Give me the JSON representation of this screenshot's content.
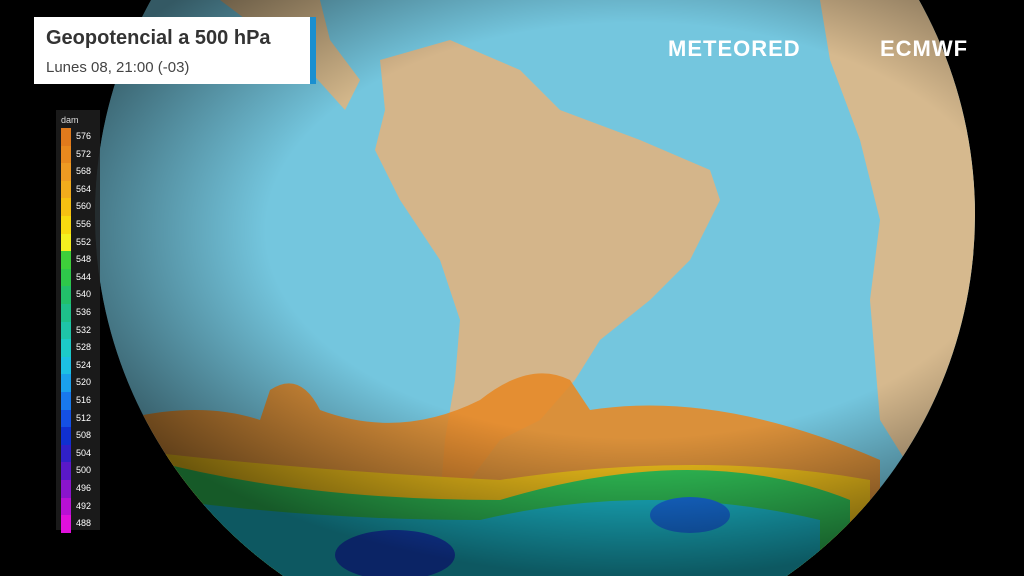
{
  "header": {
    "title": "Geopotencial a 500 hPa",
    "subtitle": "Lunes 08, 21:00 (-03)"
  },
  "brand": {
    "left": "METEORED",
    "right": "ECMWF"
  },
  "legend": {
    "unit": "dam",
    "items": [
      {
        "label": 576,
        "color": "#e07a1c"
      },
      {
        "label": 572,
        "color": "#e8891e"
      },
      {
        "label": 568,
        "color": "#ee9a22"
      },
      {
        "label": 564,
        "color": "#f2ab1c"
      },
      {
        "label": 560,
        "color": "#f6c012"
      },
      {
        "label": 556,
        "color": "#f8da10"
      },
      {
        "label": 552,
        "color": "#f4f020"
      },
      {
        "label": 548,
        "color": "#3ed03a"
      },
      {
        "label": 544,
        "color": "#2ec84a"
      },
      {
        "label": 540,
        "color": "#22c06a"
      },
      {
        "label": 536,
        "color": "#1ec08a"
      },
      {
        "label": 532,
        "color": "#1ec4a8"
      },
      {
        "label": 528,
        "color": "#1ccac8"
      },
      {
        "label": 524,
        "color": "#1cc0e4"
      },
      {
        "label": 520,
        "color": "#1aa0ec"
      },
      {
        "label": 516,
        "color": "#1878ec"
      },
      {
        "label": 512,
        "color": "#1450e4"
      },
      {
        "label": 508,
        "color": "#1030d0"
      },
      {
        "label": 504,
        "color": "#3020c8"
      },
      {
        "label": 500,
        "color": "#5a18c8"
      },
      {
        "label": 496,
        "color": "#8a14cc"
      },
      {
        "label": 492,
        "color": "#b810d4"
      },
      {
        "label": 488,
        "color": "#e010dc"
      }
    ]
  }
}
